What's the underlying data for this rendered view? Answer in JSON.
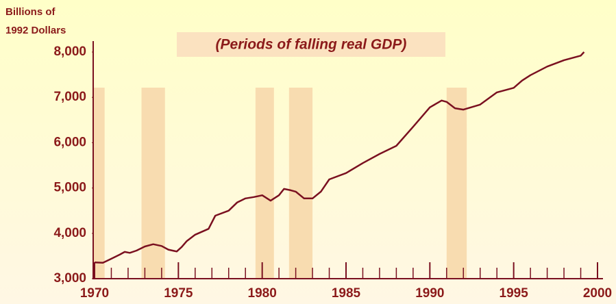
{
  "chart_data": {
    "type": "line",
    "ylabel": [
      "Billions of",
      "1992 Dollars"
    ],
    "annotation": "(Periods of falling real GDP)",
    "x": [
      1970,
      1970.5,
      1971,
      1971.5,
      1971.8,
      1972.1,
      1972.5,
      1973,
      1973.5,
      1974,
      1974.4,
      1974.9,
      1975.2,
      1975.5,
      1976,
      1976.8,
      1977.2,
      1978,
      1978.5,
      1979,
      1979.5,
      1980,
      1980.5,
      1981,
      1981.3,
      1981.7,
      1982,
      1982.5,
      1983,
      1983.5,
      1984,
      1985,
      1986,
      1987,
      1988,
      1989,
      1990,
      1990.7,
      1991,
      1991.5,
      1992,
      1993,
      1994,
      1995,
      1995.5,
      1996,
      1997,
      1998,
      1999,
      1999.2
    ],
    "series": [
      {
        "name": "Real GDP",
        "color": "#7a1020",
        "values": [
          3360,
          3350,
          3440,
          3530,
          3590,
          3570,
          3620,
          3710,
          3760,
          3720,
          3640,
          3600,
          3700,
          3830,
          3970,
          4100,
          4390,
          4500,
          4680,
          4770,
          4800,
          4840,
          4720,
          4840,
          4980,
          4950,
          4920,
          4770,
          4770,
          4920,
          5190,
          5330,
          5550,
          5750,
          5930,
          6350,
          6780,
          6930,
          6900,
          6760,
          6730,
          6840,
          7110,
          7210,
          7370,
          7490,
          7680,
          7820,
          7920,
          8000
        ]
      }
    ],
    "periods": [
      [
        1969.9,
        1970.6
      ],
      [
        1972.8,
        1974.2
      ],
      [
        1979.6,
        1980.7
      ],
      [
        1981.6,
        1983.0
      ],
      [
        1991.0,
        1992.2
      ]
    ],
    "period_color": "#f8dcb0",
    "xlim": [
      1970,
      2000
    ],
    "xticks": [
      1970,
      1975,
      1980,
      1985,
      1990,
      1995,
      2000
    ],
    "xminor_ticks": [
      1971,
      1972,
      1973,
      1974,
      1976,
      1977,
      1978,
      1979,
      1981,
      1982,
      1983,
      1984,
      1986,
      1987,
      1988,
      1989,
      1991,
      1992,
      1993,
      1994,
      1996,
      1997,
      1998,
      1999
    ],
    "ylim": [
      3000,
      8000
    ],
    "yticks": [
      {
        "value": 3000,
        "label": "3,000"
      },
      {
        "value": 4000,
        "label": "4,000"
      },
      {
        "value": 5000,
        "label": "5,000"
      },
      {
        "value": 6000,
        "label": "6,000"
      },
      {
        "value": 7000,
        "label": "7,000"
      },
      {
        "value": 8000,
        "label": "8,000"
      }
    ]
  }
}
